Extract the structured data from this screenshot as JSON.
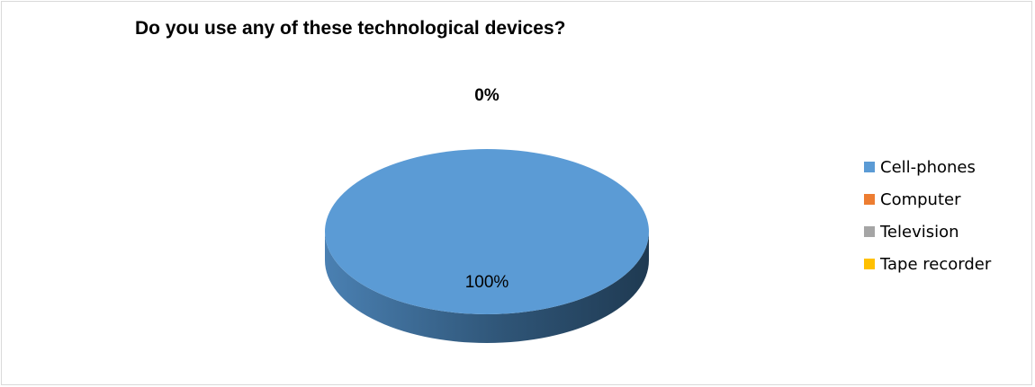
{
  "chart_data": {
    "type": "pie",
    "title": "Do you use any of these technological devices?",
    "categories": [
      "Cell-phones",
      "Computer",
      "Television",
      "Tape recorder"
    ],
    "values": [
      100,
      0,
      0,
      0
    ],
    "data_labels": [
      "100%",
      "0%",
      "0%",
      "0%"
    ],
    "colors": [
      "#5b9bd5",
      "#ed7d31",
      "#a5a5a5",
      "#ffc000"
    ],
    "legend_position": "right",
    "style": "3d"
  }
}
